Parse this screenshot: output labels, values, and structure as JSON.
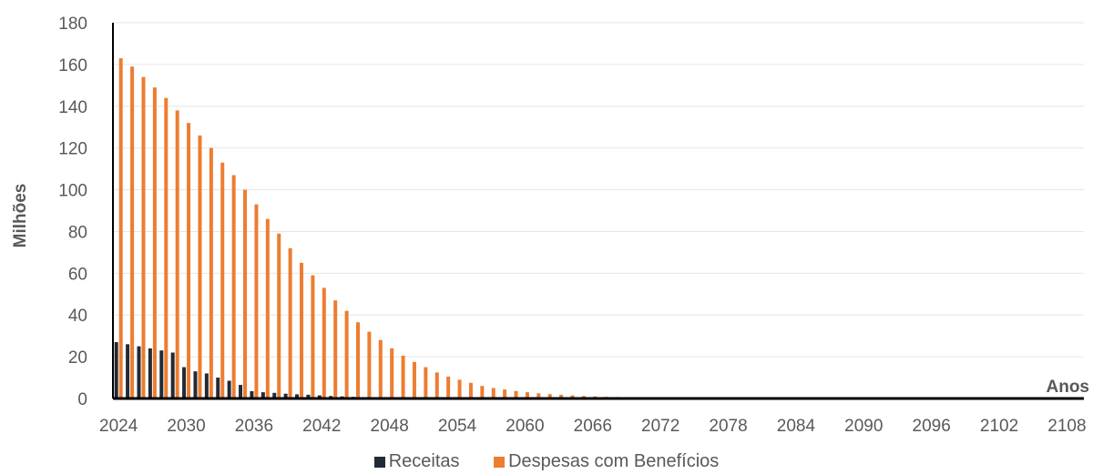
{
  "chart_data": {
    "type": "bar",
    "xlabel": "Anos",
    "ylabel": "Milhões",
    "ylim": [
      0,
      180
    ],
    "yticks": [
      0,
      20,
      40,
      60,
      80,
      100,
      120,
      140,
      160,
      180
    ],
    "x_start": 2024,
    "x_end": 2109,
    "xtick_labels": [
      "2024",
      "2030",
      "2036",
      "2042",
      "2048",
      "2054",
      "2060",
      "2066",
      "2072",
      "2078",
      "2084",
      "2090",
      "2096",
      "2102",
      "2108"
    ],
    "grid": true,
    "legend_position": "bottom",
    "colors": {
      "Receitas": "#222a35",
      "Despesas com Benefícios": "#ed7d31"
    },
    "series": [
      {
        "name": "Receitas",
        "values": [
          27,
          26,
          25,
          24,
          23,
          22,
          15,
          13,
          12,
          10,
          8.5,
          6.5,
          3.5,
          3,
          2.7,
          2.3,
          2,
          1.8,
          1.5,
          1.2,
          1,
          0.8,
          0.6,
          0.5,
          0.4,
          0.3,
          0.25,
          0.2,
          0.15,
          0.12,
          0.1,
          0.08,
          0.06,
          0.05,
          0.04,
          0.03,
          0.02,
          0.02,
          0.01,
          0.01,
          0.01,
          0.01,
          0.01,
          0.01,
          0.01,
          0.01,
          0.01,
          0.01,
          0.01,
          0.01,
          0.01,
          0.01,
          0.01,
          0.01,
          0.01,
          0.01,
          0.01,
          0.01,
          0.01,
          0.01,
          0.01,
          0.01,
          0.01,
          0.01,
          0.01,
          0.01,
          0.01,
          0.01,
          0.01,
          0.01,
          0.01,
          0.01,
          0.01,
          0.01,
          0.01,
          0.01,
          0.01,
          0.01,
          0.01,
          0.01,
          0.01,
          0.01,
          0.01,
          0.01,
          0.01,
          0.01
        ]
      },
      {
        "name": "Despesas com Benefícios",
        "values": [
          163,
          159,
          154,
          149,
          144,
          138,
          132,
          126,
          120,
          113,
          107,
          100,
          93,
          86,
          79,
          72,
          65,
          59,
          53,
          47,
          42,
          36.5,
          32,
          28,
          24,
          20.5,
          17.5,
          15,
          12.5,
          10.5,
          9,
          7.5,
          6,
          5,
          4.3,
          3.6,
          3,
          2.5,
          2.1,
          1.8,
          1.5,
          1.2,
          1,
          0.8,
          0.7,
          0.6,
          0.5,
          0.4,
          0.3,
          0.25,
          0.2,
          0.15,
          0.12,
          0.1,
          0.08,
          0.06,
          0.05,
          0.04,
          0.03,
          0.02,
          0.02,
          0.01,
          0.01,
          0.01,
          0.01,
          0.01,
          0.01,
          0.01,
          0.01,
          0.01,
          0.01,
          0.01,
          0.01,
          0.01,
          0.01,
          0.01,
          0.01,
          0.01,
          0.01,
          0.01,
          0.01,
          0.01,
          0.01,
          0.01,
          0.01,
          0.01
        ]
      }
    ]
  }
}
